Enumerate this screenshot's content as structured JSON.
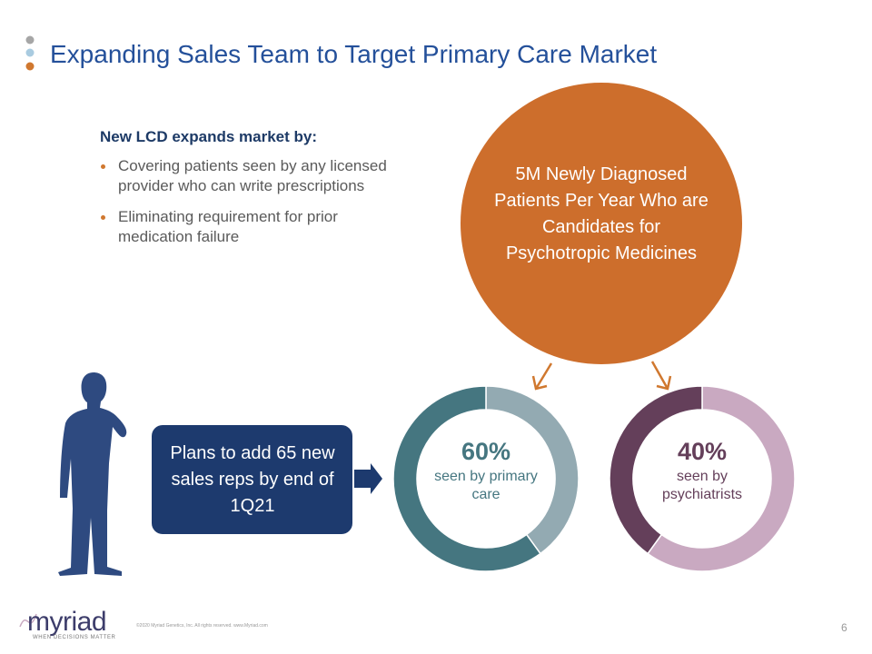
{
  "header": {
    "title": "Expanding Sales Team to Target Primary Care Market"
  },
  "intro": {
    "heading": "New LCD expands market by:",
    "bullets": [
      "Covering patients seen by any licensed provider who can write prescriptions",
      "Eliminating requirement for prior medication failure"
    ]
  },
  "circle": {
    "text": "5M Newly Diagnosed Patients Per Year Who are Candidates for Psychotropic Medicines"
  },
  "callout": {
    "text": "Plans to add 65 new sales reps by end of 1Q21"
  },
  "donuts": [
    {
      "value": 60,
      "label": "60%",
      "caption": "seen by primary care",
      "color": "#457680",
      "rest_color": "#93aab2"
    },
    {
      "value": 40,
      "label": "40%",
      "caption": "seen by psychiatrists",
      "color": "#643f5a",
      "rest_color": "#c9a9c1"
    }
  ],
  "footer": {
    "logo": "myriad",
    "tagline": "WHEN DECISIONS MATTER",
    "copyright": "©2020 Myriad Genetics, Inc. All rights reserved. www.Myriad.com",
    "page": "6"
  }
}
